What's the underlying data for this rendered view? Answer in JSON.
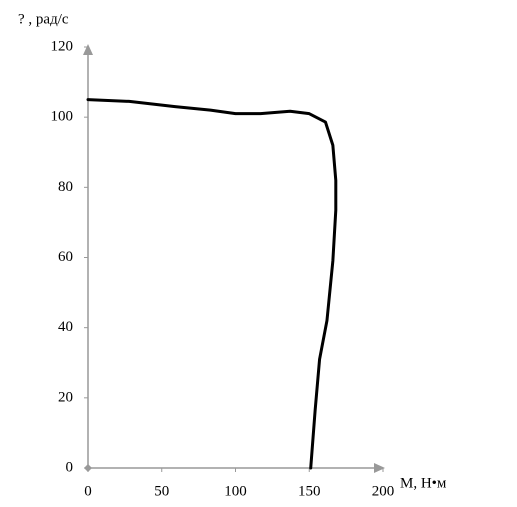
{
  "chart_data": {
    "type": "line",
    "y_label": "? , рад/с",
    "x_label": "M, Н•м",
    "x": [
      0,
      28,
      59,
      83,
      100,
      117,
      137,
      150,
      161,
      166,
      168,
      168,
      166,
      162,
      157,
      154,
      151
    ],
    "series": [
      {
        "color": "#000000",
        "values": [
          105,
          104.5,
          103,
          102,
          101,
          101,
          101.7,
          101,
          98.6,
          92,
          82,
          73.5,
          59,
          42,
          31,
          16.5,
          0
        ]
      }
    ],
    "xlim": [
      0,
      200
    ],
    "ylim": [
      0,
      120
    ],
    "xticks": [
      0,
      50,
      100,
      150,
      200
    ],
    "yticks": [
      0,
      20,
      40,
      60,
      80,
      100,
      120
    ],
    "grid": false
  }
}
